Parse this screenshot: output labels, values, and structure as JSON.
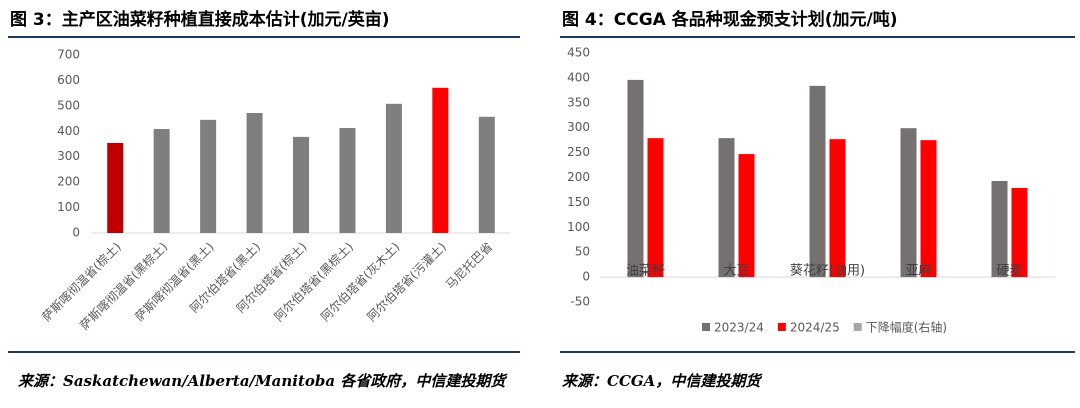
{
  "chart_data": [
    {
      "type": "bar",
      "title": "图 3：主产区油菜籽种植直接成本估计(加元/英亩)",
      "categories": [
        "萨斯喀彻温省(棕土)",
        "萨斯喀彻温省(黑棕土)",
        "萨斯喀彻温省(黑土)",
        "阿尔伯塔省(黑土)",
        "阿尔伯塔省(棕土)",
        "阿尔伯塔省(黑棕土)",
        "阿尔伯塔省(灰木土)",
        "阿尔伯塔省(污灌土)",
        "马尼托巴省"
      ],
      "values": [
        354,
        409,
        445,
        472,
        378,
        413,
        508,
        571,
        457
      ],
      "colors": [
        "#c00000",
        "#7f7f7f",
        "#7f7f7f",
        "#7f7f7f",
        "#7f7f7f",
        "#7f7f7f",
        "#7f7f7f",
        "#ff0000",
        "#7f7f7f"
      ],
      "ylim": [
        0,
        700
      ],
      "yticks": [
        0,
        100,
        200,
        300,
        400,
        500,
        600,
        700
      ],
      "grid": false,
      "source": "来源：Saskatchewan/Alberta/Manitoba 各省政府，中信建投期货"
    },
    {
      "type": "grouped_bar",
      "title": "图 4：CCGA 各品种现金预支计划(加元/吨)",
      "categories": [
        "油菜籽",
        "大豆",
        "葵花籽(油用)",
        "亚麻",
        "硬麦"
      ],
      "series": [
        {
          "name": "2023/24",
          "color": "#767171",
          "values": [
            396,
            279,
            384,
            299,
            193
          ]
        },
        {
          "name": "2024/25",
          "color": "#ff0000",
          "values": [
            279,
            247,
            277,
            275,
            179
          ]
        },
        {
          "name": "下降幅度(右轴)",
          "color": "#a5a5a5",
          "values": [
            null,
            null,
            null,
            null,
            null
          ]
        }
      ],
      "ylim": [
        -50,
        450
      ],
      "yticks": [
        -50,
        0,
        50,
        100,
        150,
        200,
        250,
        300,
        350,
        400,
        450
      ],
      "grid": false,
      "legend": "bottom",
      "source": "来源：CCGA，中信建投期货"
    }
  ]
}
